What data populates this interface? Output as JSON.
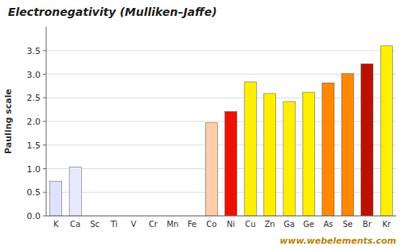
{
  "chart_data": {
    "type": "bar",
    "title": "Electronegativity (Mulliken–Jaffe)",
    "y_label": "Pauling scale",
    "annotations": [
      "www.webelements.com"
    ],
    "categories": [
      "K",
      "Ca",
      "Sc",
      "Ti",
      "V",
      "Cr",
      "Mn",
      "Fe",
      "Co",
      "Ni",
      "Cu",
      "Zn",
      "Ga",
      "Ge",
      "As",
      "Se",
      "Br",
      "Kr"
    ],
    "values": [
      0.73,
      1.03,
      0.0,
      0.0,
      0.0,
      0.0,
      0.0,
      0.0,
      1.97,
      2.21,
      2.84,
      2.59,
      2.42,
      2.62,
      2.816,
      3.014,
      3.22,
      3.6
    ],
    "colors": [
      "#e0e0ff",
      "#e8e8ff",
      "#cc0000",
      "#cc0000",
      "#cc0000",
      "#cc0000",
      "#cc0000",
      "#cc0000",
      "#ffccaa",
      "#ee1100",
      "#ffee00",
      "#ffee00",
      "#ffee00",
      "#ffee00",
      "#ff8800",
      "#ff8800",
      "#bb1100",
      "#ffee00"
    ],
    "ylim": [
      0,
      4.0
    ],
    "yticks": [
      {
        "value": 0.0,
        "label": "0.0"
      },
      {
        "value": 0.5,
        "label": "0.5"
      },
      {
        "value": 1.0,
        "label": "1.0"
      },
      {
        "value": 1.5,
        "label": "1.5"
      },
      {
        "value": 2.0,
        "label": "2.0"
      },
      {
        "value": 2.5,
        "label": "2.5"
      },
      {
        "value": 3.0,
        "label": "3.0"
      },
      {
        "value": 3.5,
        "label": "3.5"
      }
    ],
    "grid": true
  }
}
